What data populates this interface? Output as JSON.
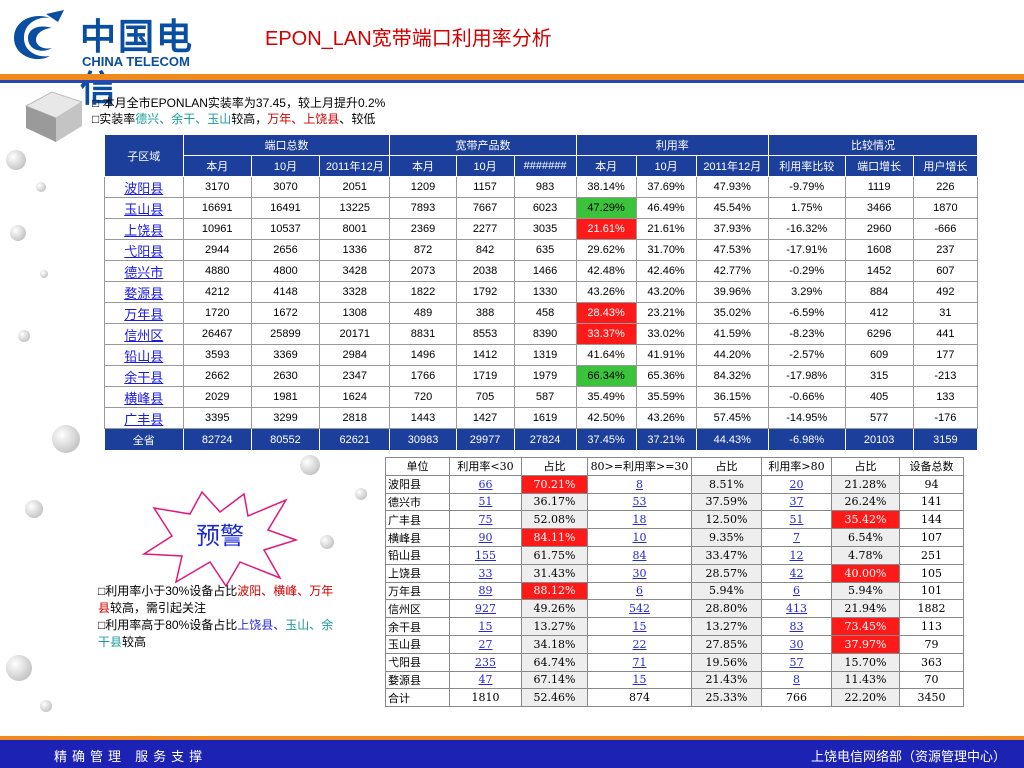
{
  "logo": {
    "cn": "中国电信",
    "en": "CHINA TELECOM"
  },
  "title": "EPON_LAN宽带端口利用率分析",
  "summary": {
    "line1": "□ 本月全市EPONLAN实装率为37.45，较上月提升0.2%",
    "line2_prefix": "□实装率",
    "line2_high": "德兴、余干、玉山",
    "line2_mid": "较高，",
    "line2_low": "万年、上饶县",
    "line2_sep": "、",
    "line2_suffix": "较低"
  },
  "table1": {
    "groups": [
      "子区域",
      "端口总数",
      "宽带产品数",
      "利用率",
      "比较情况"
    ],
    "subheaders": [
      "本月",
      "10月",
      "2011年12月",
      "本月",
      "10月",
      "#######",
      "本月",
      "10月",
      "2011年12月",
      "利用率比较",
      "端口增长",
      "用户增长"
    ],
    "rows": [
      [
        "波阳县",
        "3170",
        "3070",
        "2051",
        "1209",
        "1157",
        "983",
        "38.14%",
        "37.69%",
        "47.93%",
        "-9.79%",
        "1119",
        "226"
      ],
      [
        "玉山县",
        "16691",
        "16491",
        "13225",
        "7893",
        "7667",
        "6023",
        "47.29%",
        "46.49%",
        "45.54%",
        "1.75%",
        "3466",
        "1870"
      ],
      [
        "上饶县",
        "10961",
        "10537",
        "8001",
        "2369",
        "2277",
        "3035",
        "21.61%",
        "21.61%",
        "37.93%",
        "-16.32%",
        "2960",
        "-666"
      ],
      [
        "弋阳县",
        "2944",
        "2656",
        "1336",
        "872",
        "842",
        "635",
        "29.62%",
        "31.70%",
        "47.53%",
        "-17.91%",
        "1608",
        "237"
      ],
      [
        "德兴市",
        "4880",
        "4800",
        "3428",
        "2073",
        "2038",
        "1466",
        "42.48%",
        "42.46%",
        "42.77%",
        "-0.29%",
        "1452",
        "607"
      ],
      [
        "婺源县",
        "4212",
        "4148",
        "3328",
        "1822",
        "1792",
        "1330",
        "43.26%",
        "43.20%",
        "39.96%",
        "3.29%",
        "884",
        "492"
      ],
      [
        "万年县",
        "1720",
        "1672",
        "1308",
        "489",
        "388",
        "458",
        "28.43%",
        "23.21%",
        "35.02%",
        "-6.59%",
        "412",
        "31"
      ],
      [
        "信州区",
        "26467",
        "25899",
        "20171",
        "8831",
        "8553",
        "8390",
        "33.37%",
        "33.02%",
        "41.59%",
        "-8.23%",
        "6296",
        "441"
      ],
      [
        "铅山县",
        "3593",
        "3369",
        "2984",
        "1496",
        "1412",
        "1319",
        "41.64%",
        "41.91%",
        "44.20%",
        "-2.57%",
        "609",
        "177"
      ],
      [
        "余干县",
        "2662",
        "2630",
        "2347",
        "1766",
        "1719",
        "1979",
        "66.34%",
        "65.36%",
        "84.32%",
        "-17.98%",
        "315",
        "-213"
      ],
      [
        "横峰县",
        "2029",
        "1981",
        "1624",
        "720",
        "705",
        "587",
        "35.49%",
        "35.59%",
        "36.15%",
        "-0.66%",
        "405",
        "133"
      ],
      [
        "广丰县",
        "3395",
        "3299",
        "2818",
        "1443",
        "1427",
        "1619",
        "42.50%",
        "43.26%",
        "57.45%",
        "-14.95%",
        "577",
        "-176"
      ]
    ],
    "highlight": {
      "1": "green",
      "2": "red",
      "6": "red",
      "7": "red",
      "9": "green"
    },
    "total": [
      "全省",
      "82724",
      "80552",
      "62621",
      "30983",
      "29977",
      "27824",
      "37.45%",
      "37.21%",
      "44.43%",
      "-6.98%",
      "20103",
      "3159"
    ]
  },
  "table2": {
    "headers": [
      "单位",
      "利用率<30",
      "占比",
      "80>=利用率>=30",
      "占比",
      "利用率>80",
      "占比",
      "设备总数"
    ],
    "rows": [
      [
        "波阳县",
        "66",
        "70.21%",
        "8",
        "8.51%",
        "20",
        "21.28%",
        "94"
      ],
      [
        "德兴市",
        "51",
        "36.17%",
        "53",
        "37.59%",
        "37",
        "26.24%",
        "141"
      ],
      [
        "广丰县",
        "75",
        "52.08%",
        "18",
        "12.50%",
        "51",
        "35.42%",
        "144"
      ],
      [
        "横峰县",
        "90",
        "84.11%",
        "10",
        "9.35%",
        "7",
        "6.54%",
        "107"
      ],
      [
        "铅山县",
        "155",
        "61.75%",
        "84",
        "33.47%",
        "12",
        "4.78%",
        "251"
      ],
      [
        "上饶县",
        "33",
        "31.43%",
        "30",
        "28.57%",
        "42",
        "40.00%",
        "105"
      ],
      [
        "万年县",
        "89",
        "88.12%",
        "6",
        "5.94%",
        "6",
        "5.94%",
        "101"
      ],
      [
        "信州区",
        "927",
        "49.26%",
        "542",
        "28.80%",
        "413",
        "21.94%",
        "1882"
      ],
      [
        "余干县",
        "15",
        "13.27%",
        "15",
        "13.27%",
        "83",
        "73.45%",
        "113"
      ],
      [
        "玉山县",
        "27",
        "34.18%",
        "22",
        "27.85%",
        "30",
        "37.97%",
        "79"
      ],
      [
        "弋阳县",
        "235",
        "64.74%",
        "71",
        "19.56%",
        "57",
        "15.70%",
        "363"
      ],
      [
        "婺源县",
        "47",
        "67.14%",
        "15",
        "21.43%",
        "8",
        "11.43%",
        "70"
      ],
      [
        "合计",
        "1810",
        "52.46%",
        "874",
        "25.33%",
        "766",
        "22.20%",
        "3450"
      ]
    ],
    "warn_low": [
      0,
      3,
      6
    ],
    "warn_high": [
      2,
      5,
      8,
      9
    ]
  },
  "warning": {
    "label": "预警"
  },
  "notes": {
    "n1_prefix": "□利用率小于30%设备占比",
    "n1_red1": "波阳、横峰、万年县",
    "n1_suffix": "较高，需引起关注",
    "n2_prefix": "□利用率高于80%设备占比",
    "n2_blue": "上饶县、",
    "n2_teal": "玉山、余干县",
    "n2_suffix": "较高"
  },
  "footer": {
    "left": "精确管理 服务支撑",
    "right": "上饶电信网络部（资源管理中心）"
  },
  "colors": {
    "brand_blue": "#1c3f9c",
    "accent_orange": "#f08a1c",
    "alert_red": "#ff1a1a",
    "good_green": "#3cc33c",
    "title_red": "#d40000"
  }
}
